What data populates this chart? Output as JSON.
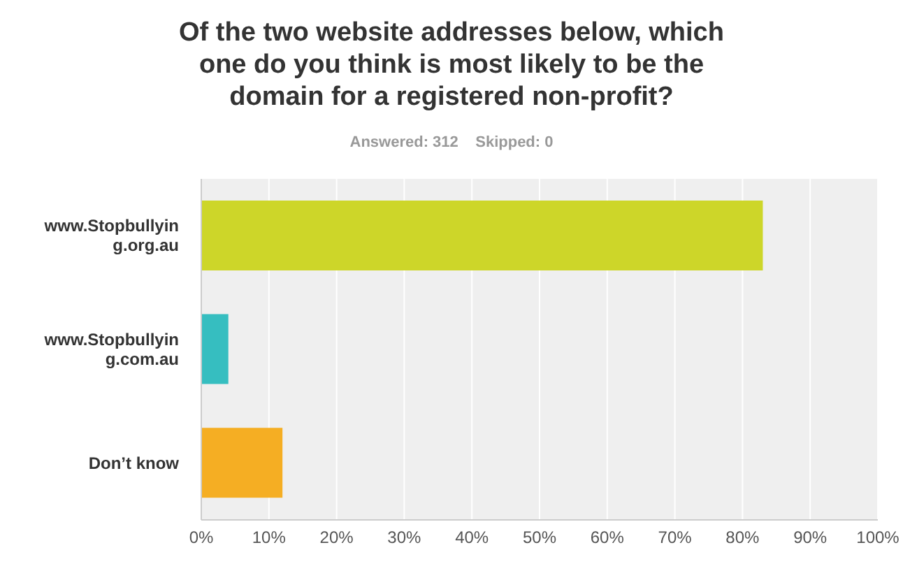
{
  "chart_data": {
    "type": "bar",
    "orientation": "horizontal",
    "title": "Of the two website addresses below, which one do you think is most likely to be the domain for a registered non-profit?",
    "subtitle": "Answered: 312    Skipped: 0",
    "categories": [
      "www.Stopbullying.org.au",
      "www.Stopbullying.com.au",
      "Don’t know"
    ],
    "values": [
      83,
      4,
      12
    ],
    "colors": [
      "#cdd629",
      "#36bec0",
      "#f5ae23"
    ],
    "xlim": [
      0,
      100
    ],
    "xticks": [
      {
        "value": 0,
        "label": "0%"
      },
      {
        "value": 10,
        "label": "10%"
      },
      {
        "value": 20,
        "label": "20%"
      },
      {
        "value": 30,
        "label": "30%"
      },
      {
        "value": 40,
        "label": "40%"
      },
      {
        "value": 50,
        "label": "50%"
      },
      {
        "value": 60,
        "label": "60%"
      },
      {
        "value": 70,
        "label": "70%"
      },
      {
        "value": 80,
        "label": "80%"
      },
      {
        "value": 90,
        "label": "90%"
      },
      {
        "value": 100,
        "label": "100%"
      }
    ],
    "grid": "x",
    "legend": false
  }
}
